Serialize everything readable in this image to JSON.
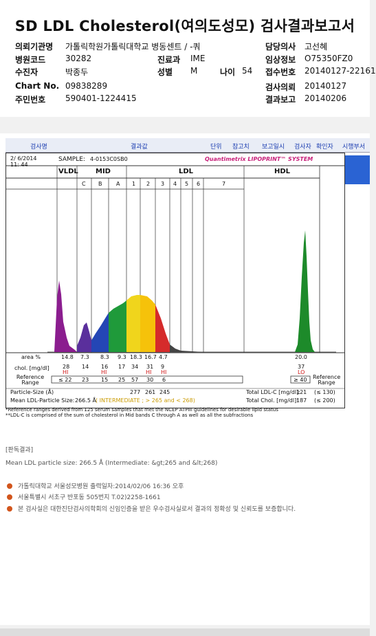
{
  "title": "SD LDL Cholesterol(여의도성모) 검사결과보고서",
  "patient_info": {
    "institution_label": "의뢰기관명",
    "institution": "가톨릭학원가톨릭대학교 병동센트 / -쿼",
    "doctor_label": "담당의사",
    "doctor": "고선혜",
    "hospital_code_label": "병원코드",
    "hospital_code": "30282",
    "dept_label": "진료과",
    "dept": "IME",
    "clinical_label": "임상정보",
    "clinical": "O75350FZ0",
    "patient_label": "수진자",
    "patient": "박종두",
    "sex_label": "성별",
    "sex": "M",
    "age_label": "나이",
    "age": "54",
    "receipt_label": "접수번호",
    "receipt": "20140127-22161",
    "chart_label": "Chart No.",
    "chart": "09838289",
    "request_label": "검사의뢰",
    "request": "20140127",
    "id_label": "주민번호",
    "id": "590401-1224415",
    "report_label": "결과보고",
    "report": "20140206"
  },
  "column_headers": [
    "검사명",
    "결과값",
    "단위",
    "참고치",
    "보고일시",
    "검사자",
    "확인자",
    "시행부서"
  ],
  "report": {
    "date": "2/ 6/2014",
    "time": "11: 44",
    "sample_label": "SAMPLE:",
    "sample": "4-0153C0SB0",
    "brand": "Quantimetrix LIPOPRINT™ SYSTEM",
    "group_labels": [
      "VLDL",
      "MID",
      "LDL",
      "HDL"
    ],
    "band_labels": [
      "C",
      "B",
      "A",
      "1",
      "2",
      "3",
      "4",
      "5",
      "6",
      "7"
    ],
    "area_label": "area %",
    "area_values": [
      "14.8",
      "7.3",
      "8.3",
      "9.3",
      "18.3",
      "16.7",
      "4.7",
      "20.0"
    ],
    "chol_label": "chol. [mg/dl]",
    "chol_values": [
      "28",
      "14",
      "16",
      "17",
      "34",
      "31",
      "9",
      "37"
    ],
    "flags": [
      "HI",
      "HI",
      "HI",
      "HI",
      "LO"
    ],
    "ref_label": "Reference Range",
    "ref_values": [
      "≤ 22",
      "23",
      "15",
      "25",
      "57",
      "30",
      "6",
      "≥ 40"
    ],
    "particle_label": "Particle-Size (Å)",
    "particle_values": [
      "277",
      "261",
      "245"
    ],
    "mean_label": "Mean LDL-Particle Size:",
    "mean_value": "266.5 Å",
    "mean_note": "( INTERMEDIATE ; > 265 and < 268)",
    "total_ldl_label": "Total LDL-C [mg/dl]:",
    "total_ldl": "121",
    "total_ldl_ref": "(≤ 130)",
    "total_chol_label": "Total Chol. [mg/dl]:",
    "total_chol": "187",
    "total_chol_ref": "(≤ 200)",
    "note1": "*Reference ranges derived from 125 serum samples that met the NCEP ATPIII guidelines for desirable lipid status",
    "note2": "**LDL-C is comprised of the sum of cholesterol in Mid bands C through A as well as all the subfractions"
  },
  "interpretation": {
    "heading": "[판독결과]",
    "text": "Mean LDL particle size: 266.5 Å (Intermediate: &gt;265 and &lt;268)"
  },
  "footer": {
    "line1": "가톨릭대학교 서울성모병원          출력일자:2014/02/06 16:36 오후",
    "line2": "서울특별시 서초구 반포동 505번지 T.02)2258-1661",
    "line3": "본 검사실은 대한진단검사의학회의 신임인증을 받은 우수검사실로서 결과의 정확성 및 신뢰도를 보증합니다."
  }
}
